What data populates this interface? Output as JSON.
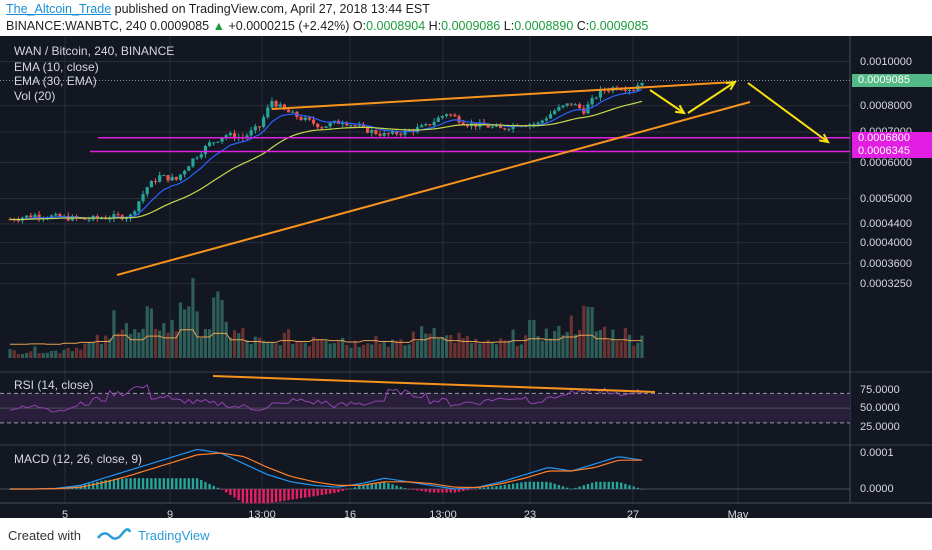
{
  "header": {
    "author": "The_Altcoin_Trade",
    "published": "published on TradingView.com, April 27, 2018 13:44 EST",
    "symbol": "BINANCE:WANBTC, 240",
    "last": "0.0009085",
    "change": "+0.0000215 (+2.42%)",
    "o_label": "O:",
    "o_value": "0.0008904",
    "h_label": "H:",
    "h_value": "0.0009086",
    "l_label": "L:",
    "l_value": "0.0008890",
    "c_label": "C:",
    "c_value": "0.0009085"
  },
  "legend": {
    "pair": "WAN / Bitcoin, 240, BINANCE",
    "ema10": "EMA (10, close)",
    "ema30": "EMA (30, EMA)",
    "vol": "Vol (20)",
    "rsi": "RSI (14, close)",
    "macd": "MACD (12, 26, close, 9)"
  },
  "footer": {
    "created_with": "Created with",
    "brand": "TradingView"
  },
  "colors": {
    "background": "#131722",
    "up": "#26a69a",
    "down": "#ef5350",
    "trendline": "#f7941d",
    "arrow": "#f5e20f",
    "support": "#e11ee1",
    "price_tag": "#53b987",
    "ema10": "#2962ff",
    "ema30": "#c6d94a",
    "rsi": "#8e44ad",
    "macd": "#2196f3",
    "signal": "#ff7f2a"
  },
  "chart_data": [
    {
      "type": "candlestick",
      "title": "WAN / Bitcoin, 240, BINANCE",
      "x_ticks": [
        "5",
        "9",
        "13:00",
        "16",
        "13:00",
        "23",
        "27",
        "May"
      ],
      "price_axis_ticks": [
        "0.0010000",
        "0.0008000",
        "0.0007000",
        "0.0006000",
        "0.0005000",
        "0.0004400",
        "0.0004000",
        "0.0003600",
        "0.0003250"
      ],
      "price_ticks": [
        0.001,
        0.0008,
        0.0007,
        0.0006,
        0.0005,
        0.00044,
        0.0004,
        0.00036,
        0.000325
      ],
      "scale": "log",
      "last_price": 0.0009085,
      "last_price_label": "0.0009085",
      "support_levels": [
        0.00068,
        0.0006345
      ],
      "support_labels": [
        "0.0006800",
        "0.0006345"
      ],
      "close_path": [
        [
          0,
          0.00045
        ],
        [
          6,
          0.00046
        ],
        [
          12,
          0.000455
        ],
        [
          18,
          0.00045
        ],
        [
          24,
          0.000455
        ],
        [
          29,
          0.000458
        ],
        [
          33,
          0.00053
        ],
        [
          36,
          0.00056
        ],
        [
          40,
          0.00055
        ],
        [
          44,
          0.00061
        ],
        [
          48,
          0.00066
        ],
        [
          52,
          0.00069
        ],
        [
          56,
          0.00068
        ],
        [
          60,
          0.00072
        ],
        [
          63,
          0.00082
        ],
        [
          66,
          0.00078
        ],
        [
          70,
          0.00075
        ],
        [
          75,
          0.00072
        ],
        [
          80,
          0.00074
        ],
        [
          85,
          0.00071
        ],
        [
          90,
          0.00069
        ],
        [
          95,
          0.0007
        ],
        [
          100,
          0.00072
        ],
        [
          105,
          0.00077
        ],
        [
          110,
          0.00073
        ],
        [
          115,
          0.00072
        ],
        [
          118,
          0.00071
        ],
        [
          122,
          0.00073
        ],
        [
          127,
          0.00073
        ],
        [
          131,
          0.00078
        ],
        [
          135,
          0.00081
        ],
        [
          138,
          0.00078
        ],
        [
          142,
          0.00086
        ],
        [
          146,
          0.00088
        ],
        [
          150,
          0.00087
        ],
        [
          152,
          0.000908
        ]
      ],
      "candles": 153
    },
    {
      "type": "bar",
      "title": "Vol (20)",
      "volume_relative": [
        0.1,
        0.12,
        0.1,
        0.15,
        0.2,
        0.25,
        0.6,
        0.35,
        0.55,
        0.45,
        0.9,
        0.5,
        0.7,
        0.35,
        0.25,
        0.2,
        0.3,
        0.25,
        0.35,
        0.3,
        0.22,
        0.3,
        0.25,
        0.2,
        0.35,
        0.45,
        0.3,
        0.25,
        0.2,
        0.22,
        0.3,
        0.4,
        0.35,
        0.5,
        0.6,
        0.4,
        0.35,
        0.3
      ]
    },
    {
      "type": "line",
      "title": "RSI (14, close)",
      "y_ticks": [
        "75.0000",
        "50.0000",
        "25.0000"
      ],
      "y_tick_values": [
        75,
        50,
        25
      ],
      "bands": [
        70,
        30
      ],
      "values": [
        50,
        52,
        48,
        55,
        62,
        70,
        78,
        65,
        60,
        58,
        56,
        52,
        50,
        55,
        60,
        58,
        54,
        56,
        60,
        72,
        68,
        60,
        56,
        58,
        62,
        64,
        60,
        66,
        70,
        74,
        68,
        72
      ]
    },
    {
      "type": "line",
      "title": "MACD (12, 26, close, 9)",
      "y_ticks": [
        "0.0001",
        "0.0000"
      ],
      "y_tick_values": [
        0.0001,
        0
      ],
      "macd": [
        0,
        0,
        2e-06,
        1e-05,
        3e-05,
        5e-05,
        7e-05,
        9e-05,
        0.00011,
        0.0001,
        7e-05,
        4e-05,
        2e-05,
        1e-05,
        5e-06,
        1.5e-05,
        3e-05,
        2e-05,
        1e-05,
        0,
        5e-06,
        2e-05,
        4e-05,
        6e-05,
        5e-05,
        7e-05,
        9e-05,
        8e-05
      ],
      "signal": [
        0,
        0,
        1e-06,
        5e-06,
        1.8e-05,
        3.5e-05,
        5.5e-05,
        7.5e-05,
        9.5e-05,
        0.0001,
        9e-05,
        6e-05,
        3.5e-05,
        2e-05,
        1e-05,
        1e-05,
        2e-05,
        2e-05,
        1.5e-05,
        5e-06,
        4e-06,
        1.5e-05,
        3e-05,
        5e-05,
        5e-05,
        6e-05,
        8e-05,
        8e-05
      ]
    }
  ]
}
